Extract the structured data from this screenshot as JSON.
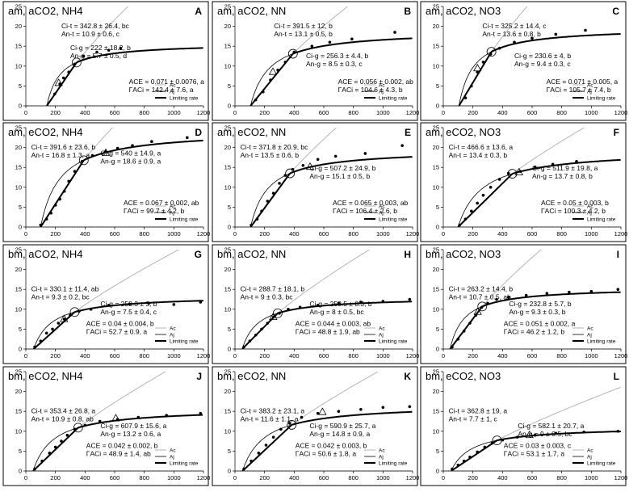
{
  "chart_data": [
    {
      "type": "line",
      "letter": "A",
      "title": "am, aCO2, NH4",
      "xlim": [
        0,
        1200
      ],
      "ylim": [
        0,
        25
      ],
      "xticks": [
        "0",
        "200",
        "400",
        "600",
        "800",
        "1000",
        "1200"
      ],
      "yticks": [
        "0",
        "5",
        "10",
        "15",
        "20",
        "25"
      ],
      "legend": [
        "Ac",
        "Aj",
        "Limiting rate"
      ],
      "annotations": [
        "Ci-t = 342.8 ± 26.4, bc",
        "An-t = 10.9 ± 0.6, c",
        "Ci-g = 222 ± 18.2, b",
        "An-g = 5.7 ± 0.5, d",
        "ACE = 0.071 ± 0.0076, a",
        "ΓACi = 142.4 ± 7.6, a"
      ],
      "gamma": 142,
      "points": [
        [
          195,
          3
        ],
        [
          230,
          5.5
        ],
        [
          255,
          7
        ],
        [
          290,
          8.5
        ],
        [
          330,
          10.5
        ],
        [
          390,
          12.5
        ],
        [
          480,
          13.5
        ],
        [
          560,
          14
        ],
        [
          640,
          14.5
        ]
      ],
      "transition": [
        342.8,
        10.9
      ],
      "triangle": [
        222,
        5.7
      ]
    },
    {
      "type": "line",
      "letter": "B",
      "title": "am, aCO2, NN",
      "xlim": [
        0,
        1200
      ],
      "ylim": [
        0,
        25
      ],
      "xticks": [
        "0",
        "200",
        "400",
        "600",
        "800",
        "1000",
        "1200"
      ],
      "yticks": [
        "0",
        "5",
        "10",
        "15",
        "20",
        "25"
      ],
      "legend": [
        "Ac",
        "Aj",
        "Limiting rate"
      ],
      "annotations": [
        "Ci-t = 391.5 ± 12, b",
        "An-t = 13.1 ± 0.5, b",
        "Ci-g = 256.3 ± 4.4, b",
        "An-g = 8.5 ± 0.3, c",
        "ACE = 0.056 ± 0.002, ab",
        "ΓACi = 104.6 ± 4.3, b"
      ],
      "gamma": 105,
      "points": [
        [
          140,
          1.5
        ],
        [
          190,
          3.5
        ],
        [
          240,
          6.5
        ],
        [
          290,
          9
        ],
        [
          340,
          11
        ],
        [
          400,
          13.5
        ],
        [
          520,
          15
        ],
        [
          640,
          16
        ],
        [
          790,
          16.8
        ],
        [
          1080,
          18.5
        ]
      ],
      "transition": [
        391.5,
        13.1
      ],
      "triangle": [
        256.3,
        8.5
      ]
    },
    {
      "type": "line",
      "letter": "C",
      "title": "am, aCO2, NO3",
      "xlim": [
        0,
        1200
      ],
      "ylim": [
        0,
        25
      ],
      "xticks": [
        "0",
        "200",
        "400",
        "600",
        "800",
        "1000",
        "1200"
      ],
      "yticks": [
        "0",
        "5",
        "10",
        "15",
        "20",
        "25"
      ],
      "legend": [
        "Ac",
        "Aj",
        "Limiting rate"
      ],
      "annotations": [
        "Ci-t = 325.2 ± 14.4, c",
        "An-t = 13.6 ± 0.8, b",
        "Ci-g = 230.6 ± 4, b",
        "An-g = 9.4 ± 0.3, c",
        "ACE = 0.071 ± 0.005, a",
        "ΓACi = 105.7 ± 7.4, b"
      ],
      "gamma": 106,
      "points": [
        [
          150,
          2
        ],
        [
          190,
          5
        ],
        [
          230,
          8.5
        ],
        [
          270,
          11
        ],
        [
          320,
          13
        ],
        [
          380,
          14.5
        ],
        [
          480,
          16
        ],
        [
          600,
          17
        ],
        [
          760,
          18
        ],
        [
          960,
          19
        ]
      ],
      "transition": [
        325.2,
        13.6
      ],
      "triangle": [
        230.6,
        9.4
      ]
    },
    {
      "type": "line",
      "letter": "D",
      "title": "am, eCO2, NH4",
      "xlim": [
        0,
        1200
      ],
      "ylim": [
        0,
        25
      ],
      "xticks": [
        "0",
        "200",
        "400",
        "600",
        "800",
        "1000",
        "1200"
      ],
      "yticks": [
        "0",
        "5",
        "10",
        "15",
        "20",
        "25"
      ],
      "legend": [
        "Ac",
        "Aj",
        "Limiting rate"
      ],
      "annotations": [
        "Ci-t = 391.6 ± 23.6, b",
        "An-t = 16.8 ± 1.3, a",
        "Ci-g = 540 ± 14.9, a",
        "An-g = 18.6 ± 0.9, a",
        "ACE = 0.067 ± 0.002, ab",
        "ΓACi = 99.7 ± 4.2, b"
      ],
      "gamma": 100,
      "points": [
        [
          100,
          0.5
        ],
        [
          140,
          2
        ],
        [
          170,
          3.5
        ],
        [
          200,
          5.5
        ],
        [
          230,
          7
        ],
        [
          260,
          9
        ],
        [
          290,
          11.5
        ],
        [
          330,
          14
        ],
        [
          380,
          16.5
        ],
        [
          450,
          18
        ],
        [
          540,
          19
        ],
        [
          620,
          19.8
        ],
        [
          720,
          20.5
        ],
        [
          850,
          21.5
        ],
        [
          1090,
          22.5
        ]
      ],
      "transition": [
        391.6,
        16.8
      ],
      "triangle": [
        540,
        18.6
      ]
    },
    {
      "type": "line",
      "letter": "E",
      "title": "am, eCO2, NN",
      "xlim": [
        0,
        1200
      ],
      "ylim": [
        0,
        25
      ],
      "xticks": [
        "0",
        "200",
        "400",
        "600",
        "800",
        "1000",
        "1200"
      ],
      "yticks": [
        "0",
        "5",
        "10",
        "15",
        "20",
        "25"
      ],
      "legend": [
        "Ac",
        "Aj",
        "Limiting rate"
      ],
      "annotations": [
        "Ci-t = 371.8 ± 20.9, bc",
        "An-t = 13.5 ± 0.6, b",
        "Ci-g = 507.2 ± 24.9, b",
        "An-g = 15.1 ± 0.5, b",
        "ACE = 0.065 ± 0.003, ab",
        "ΓACi = 106.4 ± 2.6, b"
      ],
      "gamma": 106,
      "points": [
        [
          110,
          0.5
        ],
        [
          150,
          2
        ],
        [
          180,
          4
        ],
        [
          220,
          6.5
        ],
        [
          260,
          8.5
        ],
        [
          300,
          11
        ],
        [
          340,
          13
        ],
        [
          390,
          14.5
        ],
        [
          460,
          15.5
        ],
        [
          560,
          17
        ],
        [
          680,
          17.8
        ],
        [
          880,
          18.5
        ],
        [
          1130,
          20.5
        ]
      ],
      "transition": [
        371.8,
        13.5
      ],
      "triangle": [
        507.2,
        15.1
      ]
    },
    {
      "type": "line",
      "letter": "F",
      "title": "am, eCO2, NO3",
      "xlim": [
        0,
        1200
      ],
      "ylim": [
        0,
        25
      ],
      "xticks": [
        "0",
        "200",
        "400",
        "600",
        "800",
        "1000",
        "1200"
      ],
      "yticks": [
        "0",
        "5",
        "10",
        "15",
        "20",
        "25"
      ],
      "legend": [
        "Ac",
        "Aj",
        "Limiting rate"
      ],
      "annotations": [
        "Ci-t = 466.6 ± 13.6, a",
        "An-t = 13.4 ± 0.3, b",
        "Ci-g = 511.9 ± 19.8, a",
        "An-g = 13.7 ± 0.8, b",
        "ACE = 0.05 ± 0.003, b",
        "ΓACi = 100.3 ± 4.2, b"
      ],
      "gamma": 100,
      "points": [
        [
          110,
          0.5
        ],
        [
          150,
          2
        ],
        [
          190,
          4
        ],
        [
          230,
          6
        ],
        [
          270,
          8
        ],
        [
          320,
          10
        ],
        [
          380,
          12
        ],
        [
          440,
          13.5
        ],
        [
          520,
          14
        ],
        [
          620,
          15
        ],
        [
          740,
          15.8
        ],
        [
          900,
          16.5
        ]
      ],
      "transition": [
        466.6,
        13.4
      ],
      "triangle": [
        511.9,
        13.7
      ]
    },
    {
      "type": "line",
      "letter": "G",
      "title": "bm, aCO2, NH4",
      "xlim": [
        0,
        1200
      ],
      "ylim": [
        0,
        25
      ],
      "xticks": [
        "0",
        "200",
        "400",
        "600",
        "800",
        "1000",
        "1200"
      ],
      "yticks": [
        "0",
        "5",
        "10",
        "15",
        "20",
        "25"
      ],
      "legend": [
        "Ac",
        "Aj",
        "Limiting rate"
      ],
      "annotations": [
        "Ci-t = 330.1 ± 11.4, ab",
        "An-t = 9.3 ± 0.2, bc",
        "Ci-g = 258.3 ± 3, b",
        "An-g = 7.5 ± 0.4, c",
        "ACE = 0.04 ± 0.004, b",
        "ΓACi = 52.7 ± 0.9, a"
      ],
      "gamma": 53,
      "points": [
        [
          60,
          0.5
        ],
        [
          100,
          2
        ],
        [
          140,
          4
        ],
        [
          180,
          5
        ],
        [
          220,
          6.5
        ],
        [
          260,
          7.5
        ],
        [
          300,
          8.5
        ],
        [
          360,
          9.5
        ],
        [
          440,
          10
        ],
        [
          560,
          11
        ],
        [
          700,
          11.3
        ],
        [
          830,
          11.5
        ],
        [
          1000,
          11.2
        ],
        [
          1180,
          11.8
        ]
      ],
      "transition": [
        330.1,
        9.3
      ],
      "triangle": [
        258.3,
        7.5
      ]
    },
    {
      "type": "line",
      "letter": "H",
      "title": "bm, aCO2, NN",
      "xlim": [
        0,
        1200
      ],
      "ylim": [
        0,
        25
      ],
      "xticks": [
        "0",
        "200",
        "400",
        "600",
        "800",
        "1000",
        "1200"
      ],
      "yticks": [
        "0",
        "5",
        "10",
        "15",
        "20",
        "25"
      ],
      "legend": [
        "Ac",
        "Aj",
        "Limiting rate"
      ],
      "annotations": [
        "Ci-t = 288.7 ± 18.1, b",
        "An-t = 9 ± 0.3, bc",
        "Ci-g = 258.5 ± 8.3, b",
        "An-g = 8 ± 0.5, bc",
        "ACE = 0.044 ± 0.003, ab",
        "ΓACi = 48.8 ± 1.9, ab"
      ],
      "gamma": 49,
      "points": [
        [
          60,
          0.5
        ],
        [
          100,
          2
        ],
        [
          140,
          3.5
        ],
        [
          180,
          5
        ],
        [
          220,
          6.5
        ],
        [
          260,
          8
        ],
        [
          300,
          9
        ],
        [
          360,
          10
        ],
        [
          440,
          10.5
        ],
        [
          560,
          11
        ],
        [
          700,
          11.5
        ],
        [
          850,
          11.8
        ],
        [
          1000,
          12
        ],
        [
          1180,
          12.5
        ]
      ],
      "transition": [
        288.7,
        9
      ],
      "triangle": [
        258.5,
        8
      ]
    },
    {
      "type": "line",
      "letter": "I",
      "title": "bm, aCO2, NO3",
      "xlim": [
        0,
        1200
      ],
      "ylim": [
        0,
        25
      ],
      "xticks": [
        "0",
        "200",
        "400",
        "600",
        "800",
        "1000",
        "1200"
      ],
      "yticks": [
        "0",
        "5",
        "10",
        "15",
        "20",
        "25"
      ],
      "legend": [
        "Ac",
        "Aj",
        "Limiting rate"
      ],
      "annotations": [
        "Ci-t = 263.2 ± 14.4, b",
        "An-t = 10.7 ± 0.5, ab",
        "Ci-g = 232.8 ± 5.7, b",
        "An-g = 9.3 ± 0.3, b",
        "ACE = 0.051 ± 0.002, a",
        "ΓACi = 46.2 ± 1.2, b"
      ],
      "gamma": 46,
      "points": [
        [
          60,
          0.5
        ],
        [
          100,
          2.5
        ],
        [
          140,
          4.5
        ],
        [
          180,
          6.5
        ],
        [
          220,
          8.5
        ],
        [
          260,
          10.5
        ],
        [
          300,
          11.5
        ],
        [
          360,
          12.5
        ],
        [
          440,
          13
        ],
        [
          560,
          13.5
        ],
        [
          700,
          14
        ],
        [
          850,
          14.3
        ],
        [
          1000,
          14.5
        ],
        [
          1180,
          15
        ]
      ],
      "transition": [
        263.2,
        10.7
      ],
      "triangle": [
        232.8,
        9.3
      ]
    },
    {
      "type": "line",
      "letter": "J",
      "title": "bm, eCO2, NH4",
      "xlim": [
        0,
        1200
      ],
      "ylim": [
        0,
        25
      ],
      "xticks": [
        "0",
        "200",
        "400",
        "600",
        "800",
        "1000",
        "1200"
      ],
      "yticks": [
        "0",
        "5",
        "10",
        "15",
        "20",
        "25"
      ],
      "legend": [
        "Ac",
        "Aj",
        "Limiting rate"
      ],
      "annotations": [
        "Ci-t = 353.4 ± 26.8, a",
        "An-t = 10.9 ± 0.8, ab",
        "Ci-g = 607.9 ± 15.6, a",
        "An-g = 13.2 ± 0.6, a",
        "ACE = 0.042 ± 0.002, b",
        "ΓACi = 48.9 ± 1.4, ab"
      ],
      "gamma": 49,
      "points": [
        [
          60,
          0.5
        ],
        [
          110,
          2.5
        ],
        [
          160,
          4.5
        ],
        [
          200,
          6
        ],
        [
          240,
          7.5
        ],
        [
          280,
          9
        ],
        [
          330,
          10.5
        ],
        [
          400,
          11.5
        ],
        [
          500,
          12.5
        ],
        [
          620,
          13
        ],
        [
          760,
          13.5
        ],
        [
          950,
          14
        ],
        [
          1180,
          14.5
        ]
      ],
      "transition": [
        353.4,
        10.9
      ],
      "triangle": [
        607.9,
        13.2
      ]
    },
    {
      "type": "line",
      "letter": "K",
      "title": "bm, eCO2, NN",
      "xlim": [
        0,
        1200
      ],
      "ylim": [
        0,
        25
      ],
      "xticks": [
        "0",
        "200",
        "400",
        "600",
        "800",
        "1000",
        "1200"
      ],
      "yticks": [
        "0",
        "5",
        "10",
        "15",
        "20",
        "25"
      ],
      "legend": [
        "Ac",
        "Aj",
        "Limiting rate"
      ],
      "annotations": [
        "Ci-t = 383.2 ± 23.1, a",
        "An-t = 11.6 ± 1.1, a",
        "Ci-g = 590.9 ± 25.7, a",
        "An-g = 14.8 ± 0.9, a",
        "ACE = 0.042 ± 0.003, b",
        "ΓACi = 50.6 ± 1.8, a"
      ],
      "gamma": 51,
      "points": [
        [
          60,
          0.5
        ],
        [
          110,
          2.5
        ],
        [
          160,
          4.5
        ],
        [
          210,
          6.5
        ],
        [
          260,
          8.5
        ],
        [
          310,
          10.5
        ],
        [
          370,
          12
        ],
        [
          450,
          13.5
        ],
        [
          560,
          14.5
        ],
        [
          700,
          15
        ],
        [
          850,
          15.5
        ],
        [
          1000,
          16
        ],
        [
          1180,
          16.2
        ]
      ],
      "transition": [
        383.2,
        11.6
      ],
      "triangle": [
        590.9,
        14.8
      ]
    },
    {
      "type": "line",
      "letter": "L",
      "title": "bm, eCO2, NO3",
      "xlim": [
        0,
        1200
      ],
      "ylim": [
        0,
        25
      ],
      "xticks": [
        "0",
        "200",
        "400",
        "600",
        "800",
        "1000",
        "1200"
      ],
      "yticks": [
        "0",
        "5",
        "10",
        "15",
        "20",
        "25"
      ],
      "legend": [
        "Ac",
        "Aj",
        "Limiting rate"
      ],
      "annotations": [
        "Ci-t = 362.8 ± 19, a",
        "An-t = 7.7 ± 1, c",
        "Ci-g = 582.1 ± 20.7, a",
        "An-g = 9 ± 0.5, bc",
        "ACE = 0.03 ± 0.003, c",
        "ΓACi = 53.1 ± 1.7, a"
      ],
      "gamma": 53,
      "points": [
        [
          60,
          0.5
        ],
        [
          100,
          1.5
        ],
        [
          140,
          2.5
        ],
        [
          180,
          3.5
        ],
        [
          230,
          4.8
        ],
        [
          280,
          6
        ],
        [
          330,
          7
        ],
        [
          400,
          7.8
        ],
        [
          500,
          8.5
        ],
        [
          620,
          9
        ],
        [
          760,
          9.5
        ],
        [
          950,
          9.8
        ],
        [
          1180,
          10
        ]
      ],
      "transition": [
        362.8,
        7.7
      ],
      "triangle": [
        582.1,
        9
      ]
    }
  ]
}
